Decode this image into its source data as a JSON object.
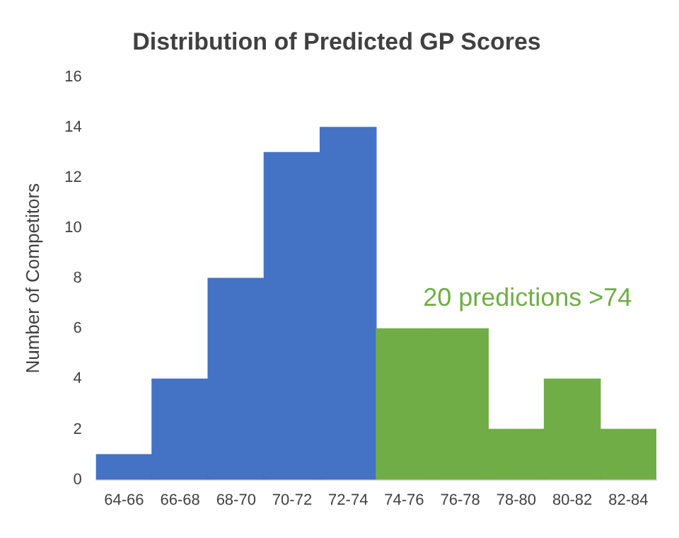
{
  "chart_data": {
    "type": "bar",
    "title": "Distribution of Predicted GP Scores",
    "ylabel": "Number of Competitors",
    "categories": [
      "64-66",
      "66-68",
      "68-70",
      "70-72",
      "72-74",
      "74-76",
      "76-78",
      "78-80",
      "80-82",
      "82-84"
    ],
    "values": [
      1,
      4,
      8,
      13,
      14,
      6,
      6,
      2,
      4,
      2
    ],
    "colors": [
      "#4472c4",
      "#4472c4",
      "#4472c4",
      "#4472c4",
      "#4472c4",
      "#70ad47",
      "#70ad47",
      "#70ad47",
      "#70ad47",
      "#70ad47"
    ],
    "ylim": [
      0,
      16
    ],
    "yticks": [
      0,
      2,
      4,
      6,
      8,
      10,
      12,
      14,
      16
    ],
    "grid": false,
    "legend": false,
    "annotations": [
      "20 predictions >74"
    ]
  }
}
